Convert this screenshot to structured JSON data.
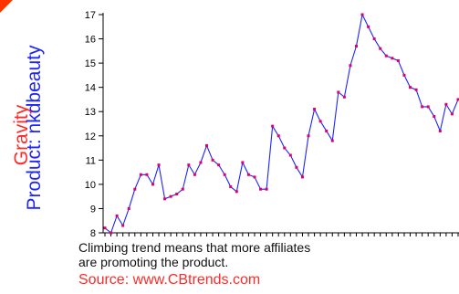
{
  "colors": {
    "line": "#1e24ff",
    "marker": "#e0006a",
    "gravity_label": "#ff2a2a",
    "product_label": "#1e24ff",
    "source": "#ff2a2a",
    "corner": "#ff3300"
  },
  "labels": {
    "gravity": "Gravity",
    "product": "Product: nkdbeauty",
    "caption_line1": "Climbing trend means that more affiliates",
    "caption_line2": "are promoting the product.",
    "source": "Source: www.CBtrends.com"
  },
  "chart_data": {
    "type": "line",
    "ylim": [
      8,
      17
    ],
    "yticks": [
      8,
      9,
      10,
      11,
      12,
      13,
      14,
      15,
      16,
      17
    ],
    "grid": false,
    "series": [
      {
        "values": [
          8.2,
          8.0,
          8.7,
          8.3,
          9.0,
          9.8,
          10.4,
          10.4,
          10.0,
          10.8,
          9.4,
          9.5,
          9.6,
          9.8,
          10.8,
          10.4,
          10.9,
          11.6,
          11.0,
          10.8,
          10.4,
          9.9,
          9.7,
          10.9,
          10.4,
          10.3,
          9.8,
          9.8,
          12.4,
          12.0,
          11.5,
          11.2,
          10.7,
          10.3,
          12.0,
          13.1,
          12.6,
          12.2,
          11.8,
          13.8,
          13.6,
          14.9,
          15.7,
          17.0,
          16.5,
          16.0,
          15.6,
          15.3,
          15.2,
          15.1,
          14.5,
          14.0,
          13.9,
          13.2,
          13.2,
          12.8,
          12.2,
          13.3,
          12.9,
          13.5
        ]
      }
    ]
  }
}
